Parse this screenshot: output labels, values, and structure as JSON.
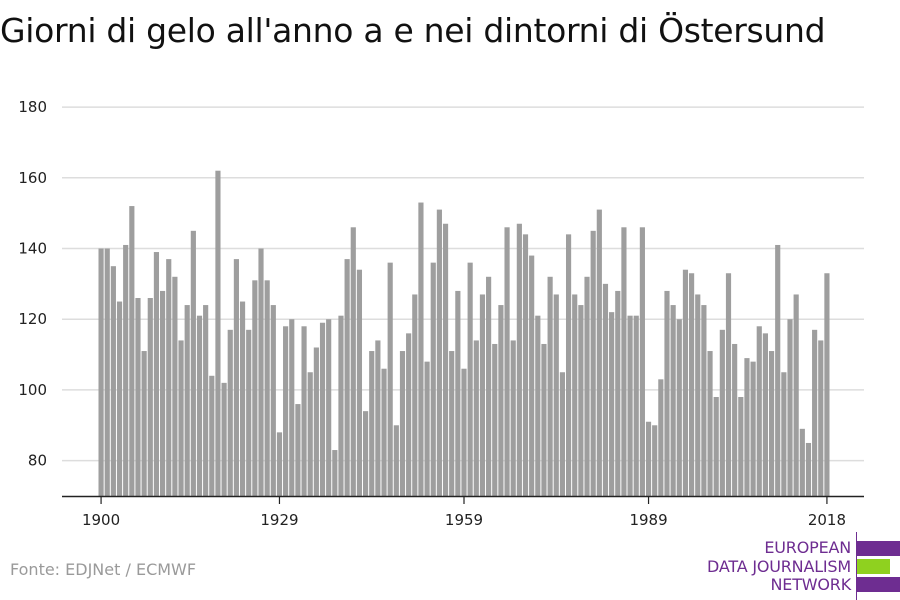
{
  "title": "Giorni di gelo all'anno a e nei dintorni di Östersund",
  "source": "Fonte: EDJNet / ECMWF",
  "logo": {
    "line1": "EUROPEAN",
    "line2": "DATA JOURNALISM",
    "line3": "NETWORK",
    "colors": {
      "purple": "#6e2d91",
      "green": "#8fd11f"
    }
  },
  "colors": {
    "bar": "#9e9e9e",
    "grid": "#dddddd",
    "axis": "#222222",
    "text": "#222222"
  },
  "chart_data": {
    "type": "bar",
    "title": "Giorni di gelo all'anno a e nei dintorni di Östersund",
    "xlabel": "",
    "ylabel": "",
    "ylim": [
      70,
      182
    ],
    "yticks": [
      80,
      100,
      120,
      140,
      160,
      180
    ],
    "xticks": [
      1900,
      1929,
      1959,
      1989,
      2018
    ],
    "grid": true,
    "x": [
      1900,
      1901,
      1902,
      1903,
      1904,
      1905,
      1906,
      1907,
      1908,
      1909,
      1910,
      1911,
      1912,
      1913,
      1914,
      1915,
      1916,
      1917,
      1918,
      1919,
      1920,
      1921,
      1922,
      1923,
      1924,
      1925,
      1926,
      1927,
      1928,
      1929,
      1930,
      1931,
      1932,
      1933,
      1934,
      1935,
      1936,
      1937,
      1938,
      1939,
      1940,
      1941,
      1942,
      1943,
      1944,
      1945,
      1946,
      1947,
      1948,
      1949,
      1950,
      1951,
      1952,
      1953,
      1954,
      1955,
      1956,
      1957,
      1958,
      1959,
      1960,
      1961,
      1962,
      1963,
      1964,
      1965,
      1966,
      1967,
      1968,
      1969,
      1970,
      1971,
      1972,
      1973,
      1974,
      1975,
      1976,
      1977,
      1978,
      1979,
      1980,
      1981,
      1982,
      1983,
      1984,
      1985,
      1986,
      1987,
      1988,
      1989,
      1990,
      1991,
      1992,
      1993,
      1994,
      1995,
      1996,
      1997,
      1998,
      1999,
      2000,
      2001,
      2002,
      2003,
      2004,
      2005,
      2006,
      2007,
      2008,
      2009,
      2010,
      2011,
      2012,
      2013,
      2014,
      2015,
      2016,
      2017,
      2018
    ],
    "values": [
      140,
      140,
      135,
      125,
      141,
      152,
      126,
      111,
      126,
      139,
      128,
      137,
      132,
      114,
      124,
      145,
      121,
      124,
      104,
      162,
      102,
      117,
      137,
      125,
      117,
      131,
      140,
      131,
      124,
      88,
      118,
      120,
      96,
      118,
      105,
      112,
      119,
      120,
      83,
      121,
      137,
      146,
      134,
      94,
      111,
      114,
      106,
      136,
      90,
      111,
      116,
      127,
      153,
      108,
      136,
      151,
      147,
      111,
      128,
      106,
      136,
      114,
      127,
      132,
      113,
      124,
      146,
      114,
      147,
      144,
      138,
      121,
      113,
      132,
      127,
      105,
      144,
      127,
      124,
      132,
      145,
      151,
      130,
      122,
      128,
      146,
      121,
      121,
      146,
      91,
      90,
      103,
      128,
      124,
      120,
      134,
      133,
      127,
      124,
      111,
      98,
      117,
      133,
      113,
      98,
      109,
      108,
      118,
      116,
      111,
      141,
      105,
      120,
      127,
      89,
      85,
      117,
      114,
      133
    ]
  }
}
